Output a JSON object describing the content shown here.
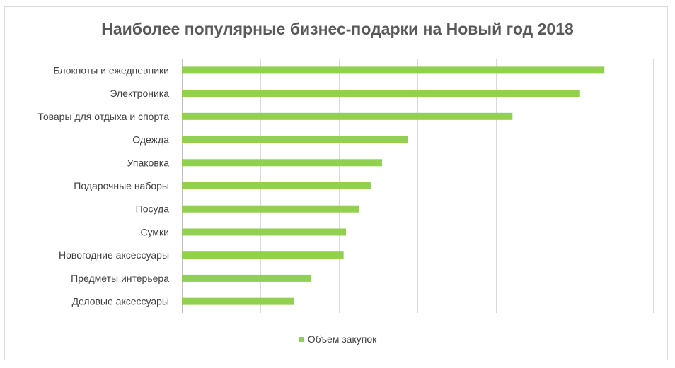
{
  "chart_data": {
    "type": "bar",
    "orientation": "horizontal",
    "title": "Наиболее популярные бизнес-подарки на Новый год 2018",
    "categories": [
      "Блокноты и ежедневники",
      "Электроника",
      "Товары для отдыха и спорта",
      "Одежда",
      "Упаковка",
      "Подарочные наборы",
      "Посуда",
      "Сумки",
      "Новогодние аксессуары",
      "Предметы интерьера",
      "Деловые аксессуары"
    ],
    "series": [
      {
        "name": "Объем закупок",
        "values": [
          5.38,
          5.07,
          4.21,
          2.88,
          2.55,
          2.41,
          2.26,
          2.09,
          2.06,
          1.65,
          1.43
        ]
      }
    ],
    "xlim": [
      0,
      6
    ],
    "x_tick_labels_visible": false,
    "grid": "vertical",
    "legend": "bottom",
    "colors": {
      "bar": "#92d050",
      "grid": "#d9d9d9",
      "axis": "#bfbfbf",
      "title": "#595959",
      "text": "#404040"
    }
  }
}
